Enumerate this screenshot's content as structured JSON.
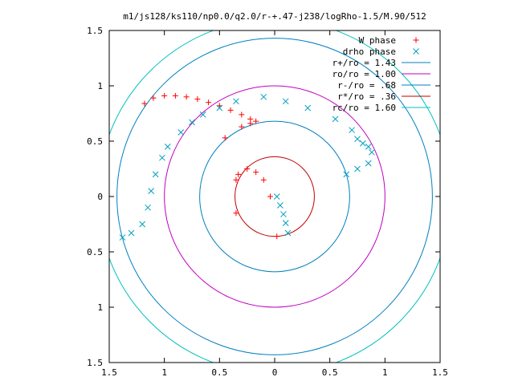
{
  "chart_data": {
    "type": "scatter",
    "title": "m1/js128/ks110/np0.0/q2.0/r-+.47-j238/logRho-1.5/M.90/512",
    "xlim": [
      -1.5,
      1.5
    ],
    "ylim": [
      -1.5,
      1.5
    ],
    "x_ticks": [
      -1.5,
      -1,
      -0.5,
      0,
      0.5,
      1,
      1.5
    ],
    "x_tick_labels": [
      "1.5",
      "1",
      "0.5",
      "0",
      "0.5",
      "1",
      "1.5"
    ],
    "y_ticks": [
      1.5,
      1,
      0.5,
      0,
      -0.5,
      -1,
      -1.5
    ],
    "y_tick_labels": [
      "1.5",
      "1",
      "0.5",
      "0",
      "0.5",
      "1",
      "1.5"
    ],
    "grid": false,
    "legend_position": "top-right",
    "series": [
      {
        "name": "W phase",
        "marker": "plus",
        "color": "#ff0000",
        "x": [
          -1.18,
          -1.1,
          -1.0,
          -0.9,
          -0.8,
          -0.7,
          -0.6,
          -0.5,
          -0.4,
          -0.3,
          -0.22,
          -0.17,
          -0.45,
          -0.3,
          -0.22,
          -0.35,
          -0.33,
          -0.25,
          -0.17,
          -0.1,
          -0.04,
          -0.35,
          0.02
        ],
        "y": [
          0.84,
          0.89,
          0.91,
          0.91,
          0.9,
          0.88,
          0.85,
          0.82,
          0.78,
          0.74,
          0.7,
          0.68,
          0.53,
          0.63,
          0.66,
          0.15,
          0.2,
          0.25,
          0.22,
          0.15,
          0.0,
          -0.15,
          -0.36
        ]
      },
      {
        "name": "drho phase",
        "marker": "cross",
        "color": "#00a0c0",
        "x": [
          -1.38,
          -1.3,
          -1.2,
          -1.15,
          -1.12,
          -1.08,
          -1.02,
          -0.97,
          -0.85,
          -0.75,
          -0.65,
          -0.5,
          -0.35,
          -0.1,
          0.1,
          0.3,
          0.55,
          0.7,
          0.75,
          0.8,
          0.85,
          0.88,
          0.85,
          0.75,
          0.65,
          0.02,
          0.05,
          0.08,
          0.1,
          0.12
        ],
        "y": [
          -0.37,
          -0.33,
          -0.25,
          -0.1,
          0.05,
          0.2,
          0.35,
          0.45,
          0.58,
          0.67,
          0.74,
          0.8,
          0.86,
          0.9,
          0.86,
          0.8,
          0.7,
          0.6,
          0.52,
          0.48,
          0.45,
          0.4,
          0.3,
          0.25,
          0.2,
          0.0,
          -0.08,
          -0.16,
          -0.24,
          -0.33
        ]
      },
      {
        "name": "r+/ro = 1.43",
        "type": "circle",
        "r": 1.43,
        "color": "#0080c0"
      },
      {
        "name": "ro/ro = 1.00",
        "type": "circle",
        "r": 1.0,
        "color": "#c000c0"
      },
      {
        "name": "r-/ro = .68",
        "type": "circle",
        "r": 0.68,
        "color": "#0080c0"
      },
      {
        "name": "r*/ro = .36",
        "type": "circle",
        "r": 0.36,
        "color": "#c00000"
      },
      {
        "name": "rc/ro = 1.60",
        "type": "circle",
        "r": 1.6,
        "color": "#00c0c0"
      }
    ]
  }
}
